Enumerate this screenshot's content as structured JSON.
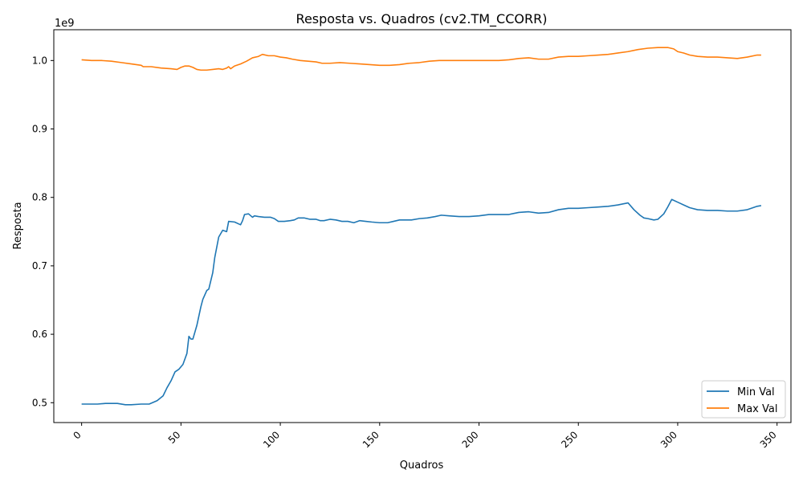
{
  "chart_data": {
    "type": "line",
    "title": "Resposta vs. Quadros (cv2.TM_CCORR)",
    "xlabel": "Quadros",
    "ylabel": "Resposta",
    "scale_label": "1e9",
    "xlim": [
      -14,
      357
    ],
    "ylim": [
      0.471,
      1.045
    ],
    "xticks": [
      0,
      50,
      100,
      150,
      200,
      250,
      300,
      350
    ],
    "xtick_labels": [
      "0",
      "50",
      "100",
      "150",
      "200",
      "250",
      "300",
      "350"
    ],
    "yticks": [
      0.5,
      0.6,
      0.7,
      0.8,
      0.9,
      1.0
    ],
    "ytick_labels": [
      "0.5",
      "0.6",
      "0.7",
      "0.8",
      "0.9",
      "1.0"
    ],
    "grid": false,
    "legend_position": "lower-right",
    "series": [
      {
        "name": "Min Val",
        "color": "#1f77b4",
        "points": [
          [
            0,
            0.498
          ],
          [
            5,
            0.498
          ],
          [
            8,
            0.498
          ],
          [
            12,
            0.499
          ],
          [
            18,
            0.499
          ],
          [
            22,
            0.497
          ],
          [
            25,
            0.497
          ],
          [
            30,
            0.498
          ],
          [
            34,
            0.498
          ],
          [
            38,
            0.503
          ],
          [
            41,
            0.51
          ],
          [
            43,
            0.522
          ],
          [
            45,
            0.532
          ],
          [
            47,
            0.545
          ],
          [
            49,
            0.549
          ],
          [
            51,
            0.556
          ],
          [
            53,
            0.572
          ],
          [
            54,
            0.597
          ],
          [
            55,
            0.593
          ],
          [
            56,
            0.593
          ],
          [
            58,
            0.613
          ],
          [
            60,
            0.64
          ],
          [
            61,
            0.651
          ],
          [
            63,
            0.664
          ],
          [
            64,
            0.666
          ],
          [
            66,
            0.69
          ],
          [
            67,
            0.712
          ],
          [
            69,
            0.742
          ],
          [
            71,
            0.752
          ],
          [
            73,
            0.75
          ],
          [
            74,
            0.765
          ],
          [
            77,
            0.764
          ],
          [
            80,
            0.76
          ],
          [
            81,
            0.766
          ],
          [
            82,
            0.775
          ],
          [
            84,
            0.776
          ],
          [
            86,
            0.771
          ],
          [
            87,
            0.773
          ],
          [
            89,
            0.772
          ],
          [
            92,
            0.771
          ],
          [
            95,
            0.771
          ],
          [
            97,
            0.769
          ],
          [
            99,
            0.765
          ],
          [
            102,
            0.765
          ],
          [
            105,
            0.766
          ],
          [
            107,
            0.767
          ],
          [
            109,
            0.77
          ],
          [
            112,
            0.77
          ],
          [
            115,
            0.768
          ],
          [
            118,
            0.768
          ],
          [
            120,
            0.766
          ],
          [
            122,
            0.766
          ],
          [
            125,
            0.768
          ],
          [
            128,
            0.767
          ],
          [
            131,
            0.765
          ],
          [
            134,
            0.765
          ],
          [
            137,
            0.763
          ],
          [
            140,
            0.766
          ],
          [
            143,
            0.765
          ],
          [
            146,
            0.764
          ],
          [
            150,
            0.763
          ],
          [
            154,
            0.763
          ],
          [
            157,
            0.765
          ],
          [
            160,
            0.767
          ],
          [
            163,
            0.767
          ],
          [
            166,
            0.767
          ],
          [
            170,
            0.769
          ],
          [
            174,
            0.77
          ],
          [
            178,
            0.772
          ],
          [
            181,
            0.774
          ],
          [
            185,
            0.773
          ],
          [
            190,
            0.772
          ],
          [
            195,
            0.772
          ],
          [
            200,
            0.773
          ],
          [
            205,
            0.775
          ],
          [
            210,
            0.775
          ],
          [
            215,
            0.775
          ],
          [
            220,
            0.778
          ],
          [
            225,
            0.779
          ],
          [
            230,
            0.777
          ],
          [
            235,
            0.778
          ],
          [
            240,
            0.782
          ],
          [
            245,
            0.784
          ],
          [
            250,
            0.784
          ],
          [
            255,
            0.785
          ],
          [
            260,
            0.786
          ],
          [
            265,
            0.787
          ],
          [
            270,
            0.789
          ],
          [
            275,
            0.792
          ],
          [
            278,
            0.782
          ],
          [
            281,
            0.774
          ],
          [
            283,
            0.77
          ],
          [
            285,
            0.769
          ],
          [
            288,
            0.767
          ],
          [
            290,
            0.768
          ],
          [
            293,
            0.776
          ],
          [
            295,
            0.786
          ],
          [
            297,
            0.797
          ],
          [
            300,
            0.793
          ],
          [
            303,
            0.789
          ],
          [
            306,
            0.785
          ],
          [
            310,
            0.782
          ],
          [
            315,
            0.781
          ],
          [
            320,
            0.781
          ],
          [
            325,
            0.78
          ],
          [
            330,
            0.78
          ],
          [
            335,
            0.782
          ],
          [
            340,
            0.787
          ],
          [
            342,
            0.788
          ]
        ]
      },
      {
        "name": "Max Val",
        "color": "#ff7f0e",
        "points": [
          [
            0,
            1.001
          ],
          [
            5,
            1.0
          ],
          [
            10,
            1.0
          ],
          [
            15,
            0.999
          ],
          [
            20,
            0.997
          ],
          [
            25,
            0.995
          ],
          [
            30,
            0.993
          ],
          [
            31,
            0.991
          ],
          [
            35,
            0.991
          ],
          [
            40,
            0.989
          ],
          [
            45,
            0.988
          ],
          [
            48,
            0.987
          ],
          [
            50,
            0.99
          ],
          [
            52,
            0.992
          ],
          [
            54,
            0.992
          ],
          [
            56,
            0.99
          ],
          [
            58,
            0.987
          ],
          [
            60,
            0.986
          ],
          [
            63,
            0.986
          ],
          [
            66,
            0.987
          ],
          [
            69,
            0.988
          ],
          [
            71,
            0.987
          ],
          [
            73,
            0.989
          ],
          [
            74,
            0.991
          ],
          [
            75,
            0.988
          ],
          [
            77,
            0.992
          ],
          [
            80,
            0.995
          ],
          [
            83,
            0.999
          ],
          [
            86,
            1.004
          ],
          [
            89,
            1.006
          ],
          [
            91,
            1.009
          ],
          [
            94,
            1.007
          ],
          [
            97,
            1.007
          ],
          [
            100,
            1.005
          ],
          [
            103,
            1.004
          ],
          [
            106,
            1.002
          ],
          [
            110,
            1.0
          ],
          [
            114,
            0.999
          ],
          [
            118,
            0.998
          ],
          [
            121,
            0.996
          ],
          [
            125,
            0.996
          ],
          [
            130,
            0.997
          ],
          [
            135,
            0.996
          ],
          [
            140,
            0.995
          ],
          [
            145,
            0.994
          ],
          [
            150,
            0.993
          ],
          [
            155,
            0.993
          ],
          [
            160,
            0.994
          ],
          [
            165,
            0.996
          ],
          [
            170,
            0.997
          ],
          [
            175,
            0.999
          ],
          [
            180,
            1.0
          ],
          [
            190,
            1.0
          ],
          [
            200,
            1.0
          ],
          [
            210,
            1.0
          ],
          [
            215,
            1.001
          ],
          [
            220,
            1.003
          ],
          [
            225,
            1.004
          ],
          [
            230,
            1.002
          ],
          [
            235,
            1.002
          ],
          [
            240,
            1.005
          ],
          [
            245,
            1.006
          ],
          [
            250,
            1.006
          ],
          [
            255,
            1.007
          ],
          [
            260,
            1.008
          ],
          [
            265,
            1.009
          ],
          [
            270,
            1.011
          ],
          [
            275,
            1.013
          ],
          [
            280,
            1.016
          ],
          [
            285,
            1.018
          ],
          [
            290,
            1.019
          ],
          [
            295,
            1.019
          ],
          [
            298,
            1.017
          ],
          [
            300,
            1.013
          ],
          [
            303,
            1.011
          ],
          [
            306,
            1.008
          ],
          [
            310,
            1.006
          ],
          [
            315,
            1.005
          ],
          [
            320,
            1.005
          ],
          [
            325,
            1.004
          ],
          [
            330,
            1.003
          ],
          [
            335,
            1.005
          ],
          [
            340,
            1.008
          ],
          [
            342,
            1.008
          ]
        ]
      }
    ]
  }
}
